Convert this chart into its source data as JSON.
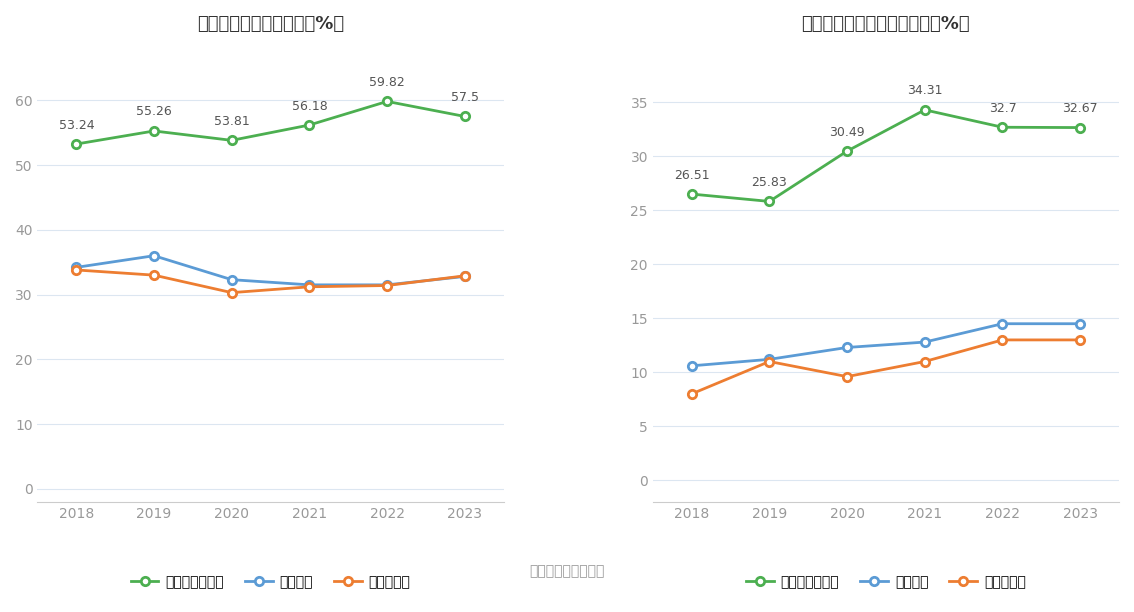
{
  "years": [
    2018,
    2019,
    2020,
    2021,
    2022,
    2023
  ],
  "left_title": "近年来资产负债率情况（%）",
  "right_title": "近年来有息资产负债率情况（%）",
  "left": {
    "company": [
      53.24,
      55.26,
      53.81,
      56.18,
      59.82,
      57.5
    ],
    "industry_mean": [
      34.2,
      36.0,
      32.3,
      31.5,
      31.5,
      32.8
    ],
    "industry_median": [
      33.8,
      33.0,
      30.3,
      31.2,
      31.4,
      32.9
    ],
    "company_label": "公司资产负债率",
    "mean_label": "行业均值",
    "median_label": "行业中位数"
  },
  "right": {
    "company": [
      26.51,
      25.83,
      30.49,
      34.31,
      32.7,
      32.67
    ],
    "industry_mean": [
      10.6,
      11.2,
      12.3,
      12.8,
      14.5,
      14.5
    ],
    "industry_median": [
      8.0,
      11.0,
      9.6,
      11.0,
      13.0,
      13.0
    ],
    "company_label": "有息资产负债率",
    "mean_label": "行业均值",
    "median_label": "行业中位数"
  },
  "source_text": "数据来源：恒生聚源",
  "company_color": "#4CAF50",
  "mean_color": "#5B9BD5",
  "median_color": "#ED7D31",
  "bg_color": "#ffffff",
  "grid_color": "#dce6f1",
  "annotation_color": "#555555",
  "tick_color": "#999999",
  "title_color": "#333333"
}
